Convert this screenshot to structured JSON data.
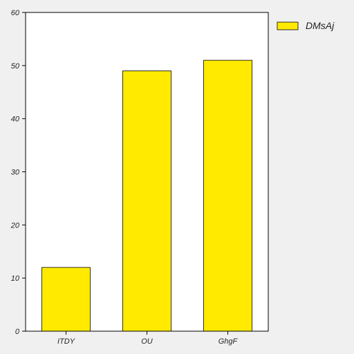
{
  "chart_data": {
    "type": "bar",
    "categories": [
      "ITDY",
      "OU",
      "GhgF"
    ],
    "series": [
      {
        "name": "DMsAj",
        "values": [
          12,
          49,
          51
        ],
        "color": "#ffea00"
      }
    ],
    "ylim": [
      0,
      60
    ],
    "yticks": [
      0,
      10,
      20,
      30,
      40,
      50,
      60
    ],
    "grid": false,
    "legend_position": "top-right-outside"
  }
}
